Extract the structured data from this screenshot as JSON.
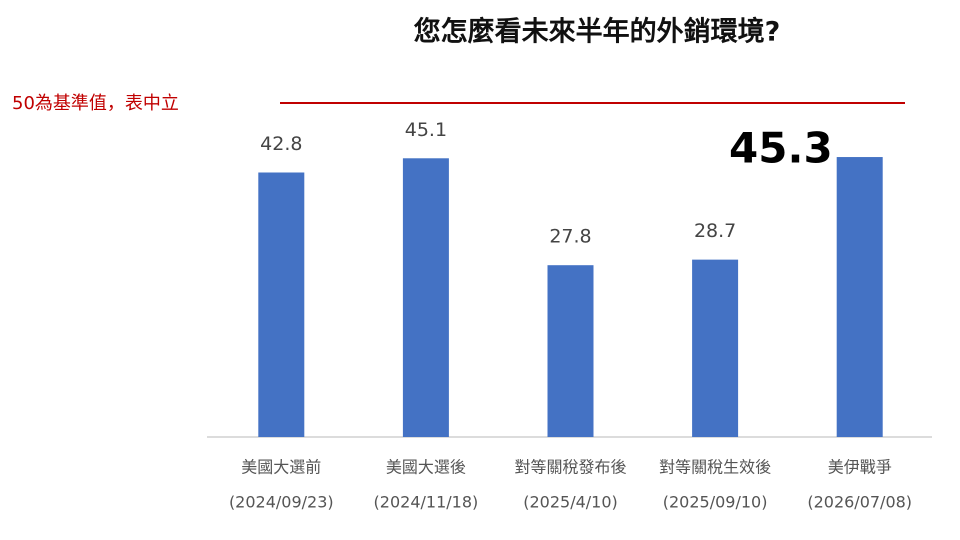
{
  "chart_data": {
    "type": "bar",
    "title": "您怎麼看未來半年的外銷環境?",
    "reference_label": "50為基準值，表中立",
    "reference_color": "#c00000",
    "categories": [
      [
        "美國大選前",
        "(2024/09/23)"
      ],
      [
        "美國大選後",
        "(2024/11/18)"
      ],
      [
        "對等關稅發布後",
        "(2025/4/10)"
      ],
      [
        "對等關稅生效後",
        "(2025/09/10)"
      ],
      [
        "美伊戰爭",
        "(2026/07/08)"
      ]
    ],
    "values": [
      42.8,
      45.1,
      27.8,
      28.7,
      45.3
    ],
    "color": "#4472c4",
    "highlight_index": 4,
    "ylim": [
      0,
      50
    ]
  }
}
